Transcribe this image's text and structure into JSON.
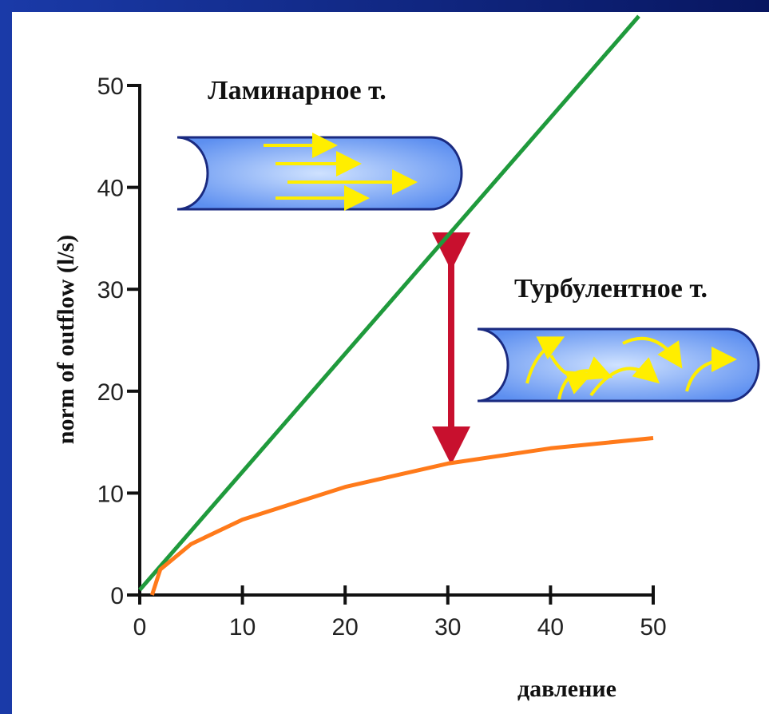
{
  "chart_data": {
    "type": "line",
    "y_label": "norm of outflow (l/s)",
    "x_label": "давление",
    "annotations": [
      "Ламинарное т.",
      "Турбулентное т."
    ],
    "series": [
      {
        "color": "#1f9a3c",
        "x": [
          0,
          48.6
        ],
        "values": [
          0.5,
          56.8
        ]
      },
      {
        "color": "#ff7a1a",
        "x": [
          1.2,
          2,
          5,
          10,
          20,
          30,
          40,
          50
        ],
        "values": [
          0,
          2.5,
          5.0,
          7.4,
          10.6,
          12.9,
          14.4,
          15.4
        ]
      }
    ],
    "xlim": [
      0,
      50
    ],
    "xticks": [
      0,
      10,
      20,
      30,
      40,
      50
    ],
    "ylim": [
      0,
      50
    ],
    "yticks": [
      0,
      10,
      20,
      30,
      40,
      50
    ]
  }
}
